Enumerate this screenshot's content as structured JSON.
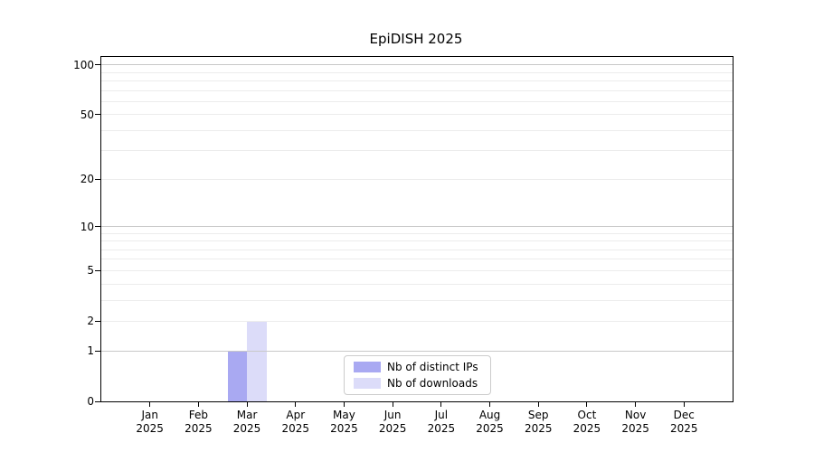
{
  "chart_data": {
    "type": "bar",
    "title": "EpiDISH 2025",
    "categories": [
      "Jan 2025",
      "Feb 2025",
      "Mar 2025",
      "Apr 2025",
      "May 2025",
      "Jun 2025",
      "Jul 2025",
      "Aug 2025",
      "Sep 2025",
      "Oct 2025",
      "Nov 2025",
      "Dec 2025"
    ],
    "x_tick_month_labels": [
      "Jan",
      "Feb",
      "Mar",
      "Apr",
      "May",
      "Jun",
      "Jul",
      "Aug",
      "Sep",
      "Oct",
      "Nov",
      "Dec"
    ],
    "x_tick_year_label": "2025",
    "series": [
      {
        "name": "Nb of distinct IPs",
        "color": "#a9a9f2",
        "values": [
          0,
          0,
          1,
          0,
          0,
          0,
          0,
          0,
          0,
          0,
          0,
          0
        ]
      },
      {
        "name": "Nb of downloads",
        "color": "#dcdcf9",
        "values": [
          0,
          0,
          2,
          0,
          0,
          0,
          0,
          0,
          0,
          0,
          0,
          0
        ]
      }
    ],
    "y_axis": {
      "scale": "log1p",
      "tick_values": [
        0,
        1,
        2,
        5,
        10,
        20,
        50,
        100
      ],
      "major_gridline_values": [
        1,
        10,
        100
      ],
      "minor_gridline_values": [
        2,
        3,
        4,
        5,
        6,
        7,
        8,
        9,
        20,
        30,
        40,
        50,
        60,
        70,
        80,
        90
      ]
    },
    "legend": {
      "position": "bottom-center",
      "entries": [
        {
          "label": "Nb of distinct IPs",
          "color": "#a9a9f2"
        },
        {
          "label": "Nb of downloads",
          "color": "#dcdcf9"
        }
      ]
    },
    "grid": true,
    "background_color": "#ffffff",
    "axis_color": "#000000"
  }
}
